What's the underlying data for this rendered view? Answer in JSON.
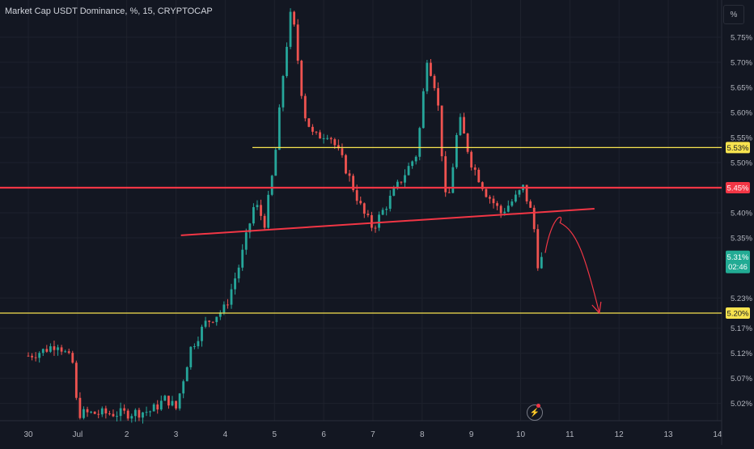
{
  "chart_title": "Market Cap USDT Dominance, %, 15, CRYPTOCAP",
  "scale_button": "%",
  "chart_data": {
    "type": "candlestick",
    "x_tick_labels": [
      "30",
      "Jul",
      "2",
      "3",
      "4",
      "5",
      "6",
      "7",
      "8",
      "9",
      "10",
      "11",
      "12",
      "13",
      "14"
    ],
    "y_tick_labels": [
      "5.75%",
      "5.70%",
      "5.65%",
      "5.60%",
      "5.55%",
      "5.50%",
      "5.40%",
      "5.35%",
      "5.23%",
      "5.17%",
      "5.12%",
      "5.07%",
      "5.02%"
    ],
    "y_tick_values": [
      5.75,
      5.7,
      5.65,
      5.6,
      5.55,
      5.5,
      5.4,
      5.35,
      5.23,
      5.17,
      5.12,
      5.07,
      5.02
    ],
    "price_path": [
      {
        "x": 0.0,
        "y": 5.115
      },
      {
        "x": 0.3,
        "y": 5.125
      },
      {
        "x": 0.6,
        "y": 5.14
      },
      {
        "x": 0.9,
        "y": 5.1
      },
      {
        "x": 1.0,
        "y": 5.0
      },
      {
        "x": 1.5,
        "y": 5.0
      },
      {
        "x": 2.0,
        "y": 5.0
      },
      {
        "x": 2.5,
        "y": 5.005
      },
      {
        "x": 2.8,
        "y": 5.03
      },
      {
        "x": 3.0,
        "y": 5.01
      },
      {
        "x": 3.3,
        "y": 5.13
      },
      {
        "x": 3.6,
        "y": 5.18
      },
      {
        "x": 4.0,
        "y": 5.21
      },
      {
        "x": 4.3,
        "y": 5.3
      },
      {
        "x": 4.6,
        "y": 5.42
      },
      {
        "x": 4.8,
        "y": 5.38
      },
      {
        "x": 5.0,
        "y": 5.5
      },
      {
        "x": 5.2,
        "y": 5.7
      },
      {
        "x": 5.35,
        "y": 5.81
      },
      {
        "x": 5.6,
        "y": 5.6
      },
      {
        "x": 5.8,
        "y": 5.55
      },
      {
        "x": 6.1,
        "y": 5.56
      },
      {
        "x": 6.4,
        "y": 5.5
      },
      {
        "x": 6.8,
        "y": 5.4
      },
      {
        "x": 7.0,
        "y": 5.37
      },
      {
        "x": 7.3,
        "y": 5.42
      },
      {
        "x": 7.6,
        "y": 5.47
      },
      {
        "x": 7.9,
        "y": 5.52
      },
      {
        "x": 8.1,
        "y": 5.71
      },
      {
        "x": 8.3,
        "y": 5.64
      },
      {
        "x": 8.5,
        "y": 5.4
      },
      {
        "x": 8.75,
        "y": 5.59
      },
      {
        "x": 9.0,
        "y": 5.5
      },
      {
        "x": 9.3,
        "y": 5.44
      },
      {
        "x": 9.6,
        "y": 5.4
      },
      {
        "x": 9.9,
        "y": 5.43
      },
      {
        "x": 10.05,
        "y": 5.45
      },
      {
        "x": 10.25,
        "y": 5.39
      },
      {
        "x": 10.35,
        "y": 5.3
      },
      {
        "x": 10.45,
        "y": 5.31
      }
    ],
    "horizontal_lines": [
      {
        "value": 5.53,
        "label": "5.53%",
        "color": "#f7e34f"
      },
      {
        "value": 5.45,
        "label": "5.45%",
        "color": "#f23645"
      },
      {
        "value": 5.2,
        "label": "5.20%",
        "color": "#f7e34f"
      }
    ],
    "current_price": {
      "label": "5.31%",
      "countdown": "02:46",
      "color": "#22ab94"
    },
    "trendline": {
      "start": {
        "x": 3.1,
        "y": 5.355
      },
      "end": {
        "x": 11.5,
        "y": 5.408
      },
      "color": "#f23645"
    },
    "projected_path": [
      {
        "x": 10.5,
        "y": 5.32
      },
      {
        "x": 10.8,
        "y": 5.38
      },
      {
        "x": 11.2,
        "y": 5.32
      },
      {
        "x": 11.6,
        "y": 5.2
      }
    ],
    "colors": {
      "background": "#131722",
      "up": "#26a69a",
      "down": "#ef5350",
      "grid": "#1e222d",
      "text": "#b2b5be"
    }
  }
}
